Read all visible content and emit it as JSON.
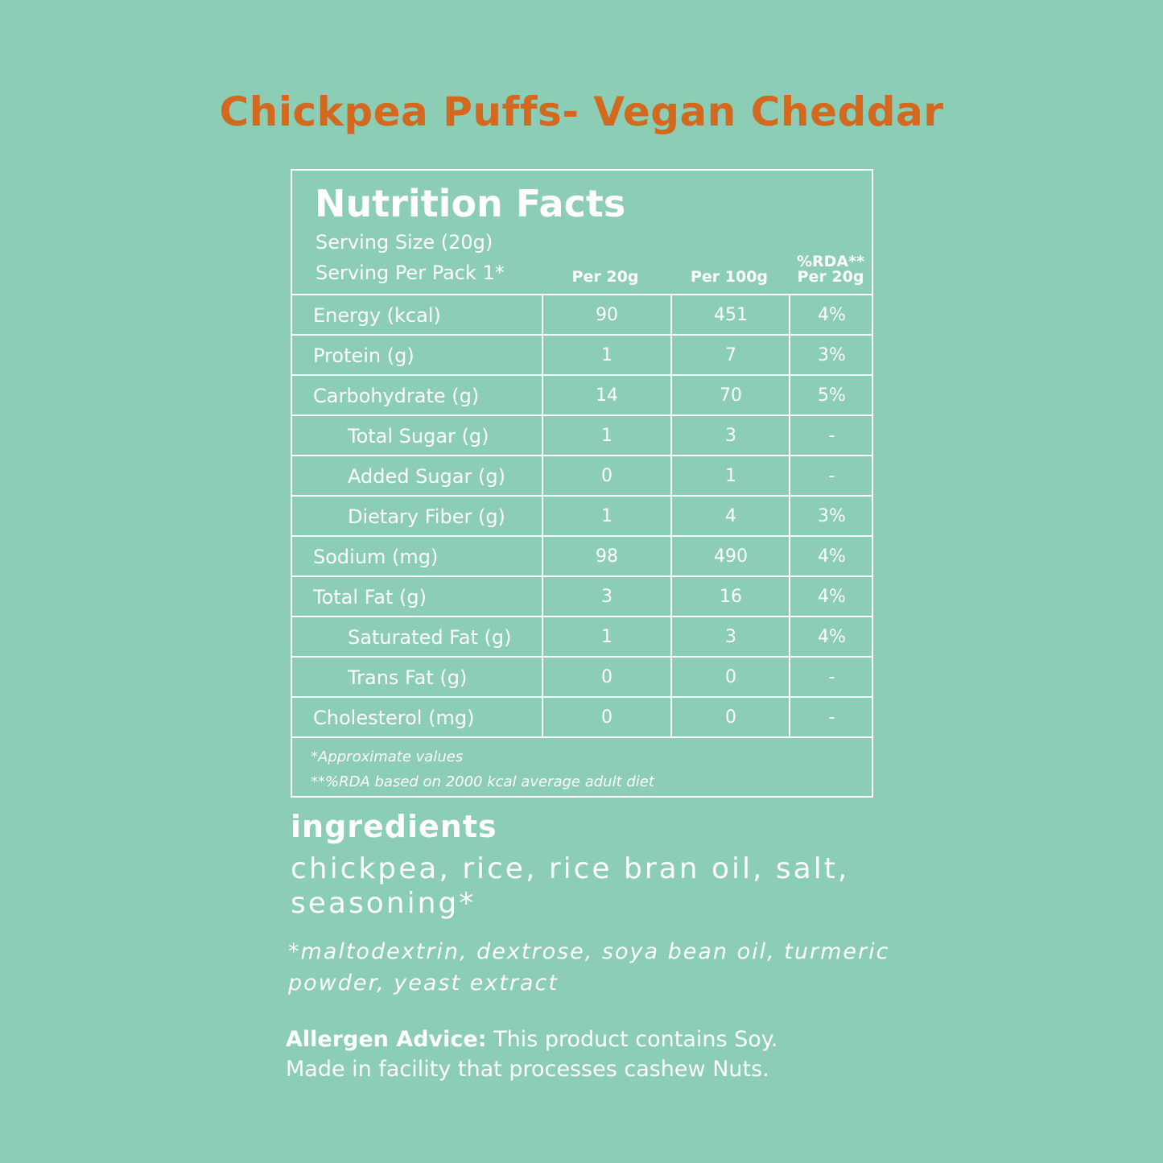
{
  "product": {
    "title": "Chickpea Puffs- Vegan Cheddar"
  },
  "nutrition": {
    "heading": "Nutrition Facts",
    "serving_size": "Serving Size (20g)",
    "serving_per_pack": "Serving Per Pack 1*",
    "columns": {
      "per20": "Per 20g",
      "per100": "Per 100g",
      "rda_line1": "%RDA**",
      "rda_line2": "Per 20g"
    },
    "rows": [
      {
        "name": "Energy (kcal)",
        "per20": "90",
        "per100": "451",
        "rda": "4%"
      },
      {
        "name": "Protein (g)",
        "per20": "1",
        "per100": "7",
        "rda": "3%"
      },
      {
        "name": "Carbohydrate (g)",
        "per20": "14",
        "per100": "70",
        "rda": "5%"
      },
      {
        "name": "Total Sugar (g)",
        "per20": "1",
        "per100": "3",
        "rda": "-"
      },
      {
        "name": "Added Sugar (g)",
        "per20": "0",
        "per100": "1",
        "rda": "-"
      },
      {
        "name": "Dietary Fiber (g)",
        "per20": "1",
        "per100": "4",
        "rda": "3%"
      },
      {
        "name": "Sodium (mg)",
        "per20": "98",
        "per100": "490",
        "rda": "4%"
      },
      {
        "name": "Total Fat (g)",
        "per20": "3",
        "per100": "16",
        "rda": "4%"
      },
      {
        "name": "Saturated Fat (g)",
        "per20": "1",
        "per100": "3",
        "rda": "4%"
      },
      {
        "name": "Trans Fat (g)",
        "per20": "0",
        "per100": "0",
        "rda": "-"
      },
      {
        "name": "Cholesterol (mg)",
        "per20": "0",
        "per100": "0",
        "rda": "-"
      }
    ],
    "footnote_1": "*Approximate values",
    "footnote_2": "**%RDA based on 2000 kcal average adult diet"
  },
  "ingredients": {
    "heading": "ingredients",
    "list": "chickpea, rice, rice bran oil, salt, seasoning*",
    "seasoning_note": "*maltodextrin, dextrose, soya bean oil, turmeric powder, yeast extract"
  },
  "allergen": {
    "label": "Allergen Advice:",
    "text": "This product contains Soy.",
    "facility": "Made in facility that processes cashew Nuts."
  },
  "colors": {
    "background": "#8ccdb6",
    "title": "#d2691e",
    "text": "#ffffff"
  }
}
